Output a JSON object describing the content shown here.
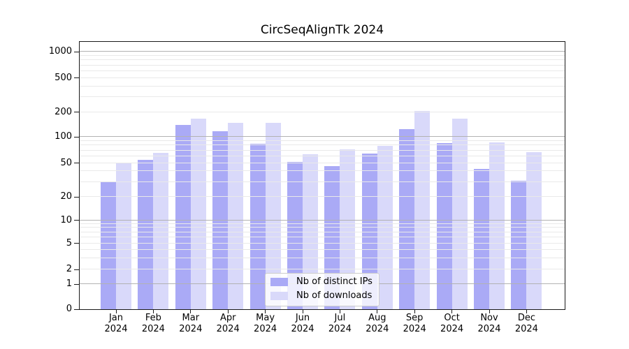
{
  "chart_data": {
    "type": "bar",
    "title": "CircSeqAlignTk 2024",
    "categories": [
      "Jan",
      "Feb",
      "Mar",
      "Apr",
      "May",
      "Jun",
      "Jul",
      "Aug",
      "Sep",
      "Oct",
      "Nov",
      "Dec"
    ],
    "year": "2024",
    "series": [
      {
        "name": "Nb of distinct IPs",
        "slug": "distinct-ips",
        "color": "#aaaaf6",
        "values": [
          30,
          54,
          140,
          118,
          84,
          52,
          46,
          65,
          125,
          85,
          43,
          31
        ]
      },
      {
        "name": "Nb of downloads",
        "slug": "downloads",
        "color": "#d9d9fa",
        "values": [
          50,
          66,
          165,
          148,
          147,
          63,
          72,
          79,
          205,
          168,
          87,
          67
        ]
      }
    ],
    "y_axis": {
      "scale": "symlog",
      "ticks": [
        0,
        1,
        2,
        5,
        10,
        20,
        50,
        100,
        200,
        500,
        1000
      ],
      "ylim": [
        0,
        1400
      ]
    },
    "x_axis": {
      "tick_label_format": "month over year"
    },
    "legend": {
      "position": "lower center",
      "items": [
        "Nb of distinct IPs",
        "Nb of downloads"
      ]
    },
    "grid": {
      "major_color": "#b2b2b2",
      "minor_color": "#e9e9e9",
      "above_bars": true
    },
    "spine_color": "#1a1a1a",
    "background": "#ffffff"
  }
}
